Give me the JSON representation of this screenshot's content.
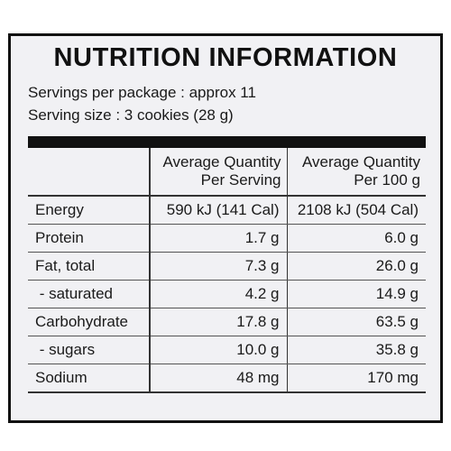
{
  "label": {
    "title": "NUTRITION INFORMATION",
    "servings_per_package": "Servings per package : approx 11",
    "serving_size": "Serving size : 3 cookies (28 g)"
  },
  "table": {
    "headers": {
      "per_serving_line1": "Average Quantity",
      "per_serving_line2": "Per Serving",
      "per_100g_line1": "Average Quantity",
      "per_100g_line2": "Per 100 g"
    },
    "rows": [
      {
        "name": "Energy",
        "per_serving": "590 kJ (141 Cal)",
        "per_100g": "2108 kJ (504 Cal)"
      },
      {
        "name": "Protein",
        "per_serving": "1.7 g",
        "per_100g": "6.0 g"
      },
      {
        "name": "Fat, total",
        "per_serving": "7.3 g",
        "per_100g": "26.0 g"
      },
      {
        "name": " - saturated",
        "per_serving": "4.2 g",
        "per_100g": "14.9 g"
      },
      {
        "name": "Carbohydrate",
        "per_serving": "17.8 g",
        "per_100g": "63.5 g"
      },
      {
        "name": " - sugars",
        "per_serving": "10.0 g",
        "per_100g": "35.8 g"
      },
      {
        "name": "Sodium",
        "per_serving": "48 mg",
        "per_100g": "170 mg"
      }
    ]
  },
  "colors": {
    "panel_background": "#f1f1f4",
    "ink": "#111111"
  }
}
